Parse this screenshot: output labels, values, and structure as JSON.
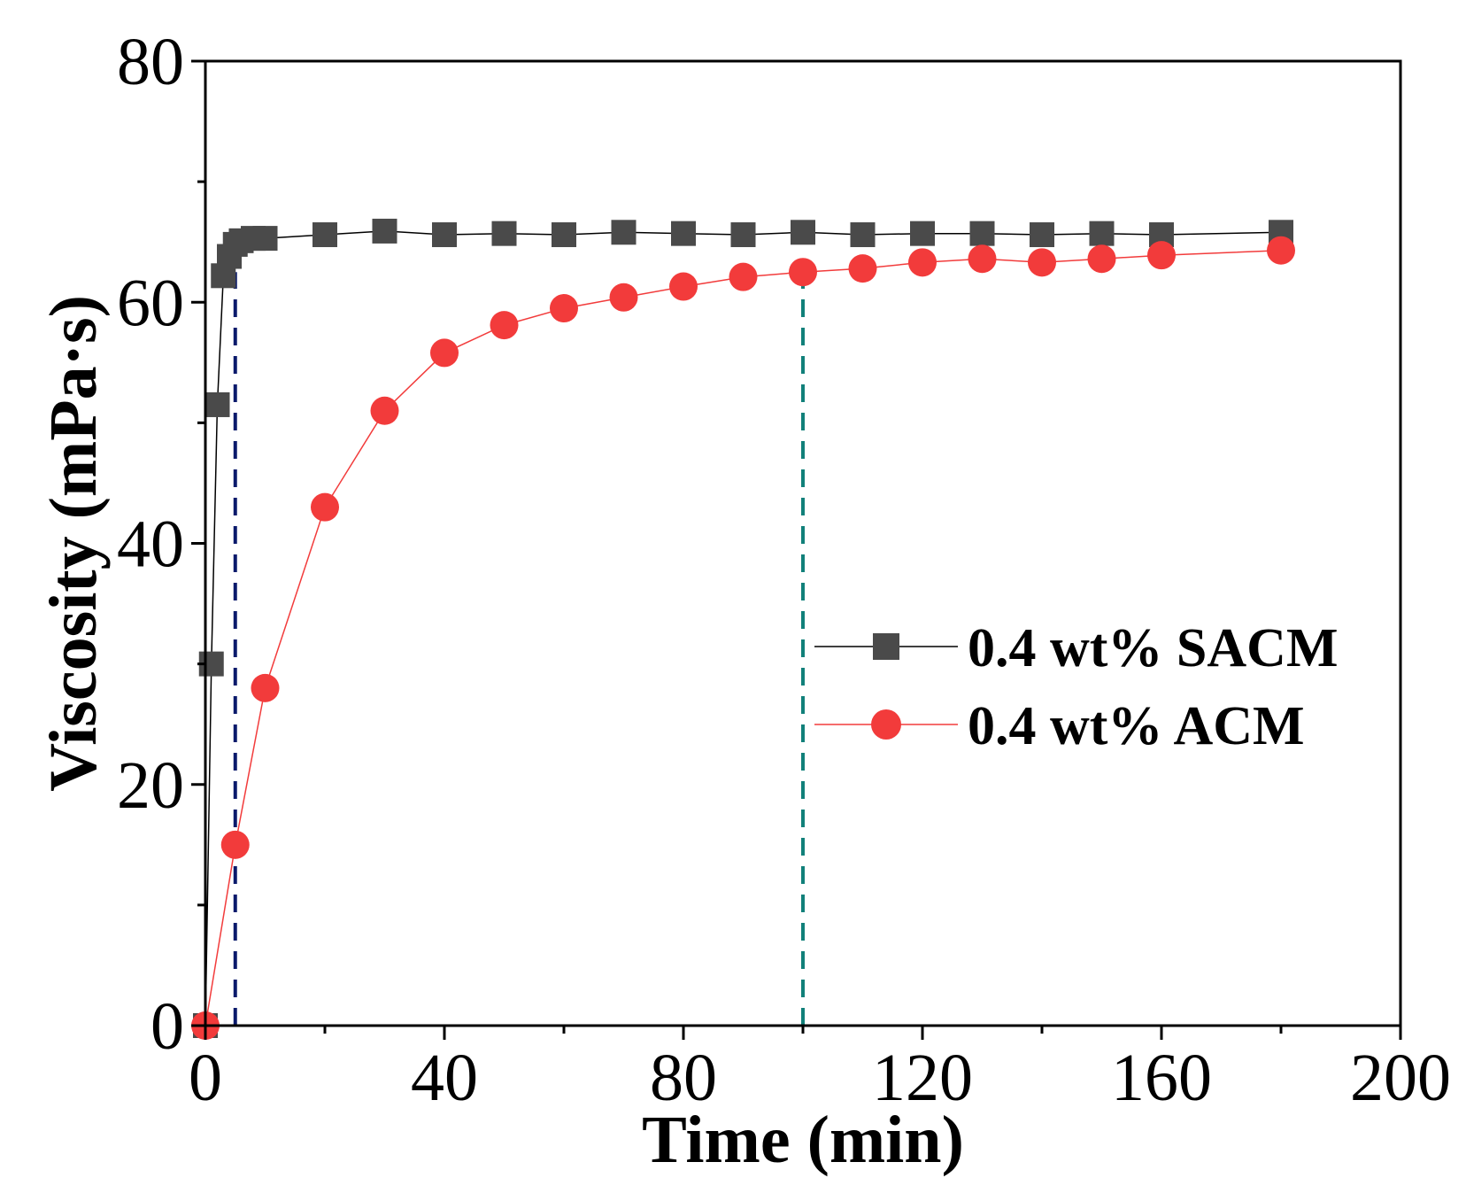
{
  "chart_data": {
    "type": "line",
    "title": "",
    "xlabel": "Time (min)",
    "ylabel": "Viscosity (mPa·s)",
    "xlim": [
      0,
      200
    ],
    "ylim": [
      0,
      80
    ],
    "xticks": [
      0,
      40,
      80,
      120,
      160,
      200
    ],
    "yticks": [
      0,
      20,
      40,
      60,
      80
    ],
    "x_minor_ticks": [
      20,
      60,
      100,
      140,
      180
    ],
    "y_minor_ticks": [
      10,
      30,
      50,
      70
    ],
    "grid": false,
    "legend_position": "center-right",
    "series": [
      {
        "name": "0.4 wt% SACM",
        "marker": "square",
        "color": "#4a4a4a",
        "line_color": "#000000",
        "x": [
          0,
          1,
          2,
          3,
          4,
          5,
          6,
          8,
          10,
          20,
          30,
          40,
          50,
          60,
          70,
          80,
          90,
          100,
          110,
          120,
          130,
          140,
          150,
          160,
          180
        ],
        "y": [
          0,
          30,
          51.5,
          62.2,
          63.8,
          64.8,
          65.1,
          65.3,
          65.3,
          65.6,
          65.9,
          65.6,
          65.7,
          65.6,
          65.8,
          65.7,
          65.6,
          65.8,
          65.6,
          65.7,
          65.7,
          65.6,
          65.7,
          65.6,
          65.8
        ]
      },
      {
        "name": "0.4 wt% ACM",
        "marker": "circle",
        "color": "#f23b3b",
        "line_color": "#f23b3b",
        "x": [
          0,
          5,
          10,
          20,
          30,
          40,
          50,
          60,
          70,
          80,
          90,
          100,
          110,
          120,
          130,
          140,
          150,
          160,
          180
        ],
        "y": [
          0,
          15,
          28,
          43,
          51,
          55.8,
          58.1,
          59.5,
          60.4,
          61.3,
          62.1,
          62.5,
          62.8,
          63.3,
          63.6,
          63.3,
          63.6,
          63.9,
          64.3
        ]
      }
    ],
    "reference_lines": [
      {
        "x": 5,
        "color": "#0a1a6b",
        "style": "dashed"
      },
      {
        "x": 100,
        "color": "#11807a",
        "style": "dashed"
      }
    ]
  }
}
